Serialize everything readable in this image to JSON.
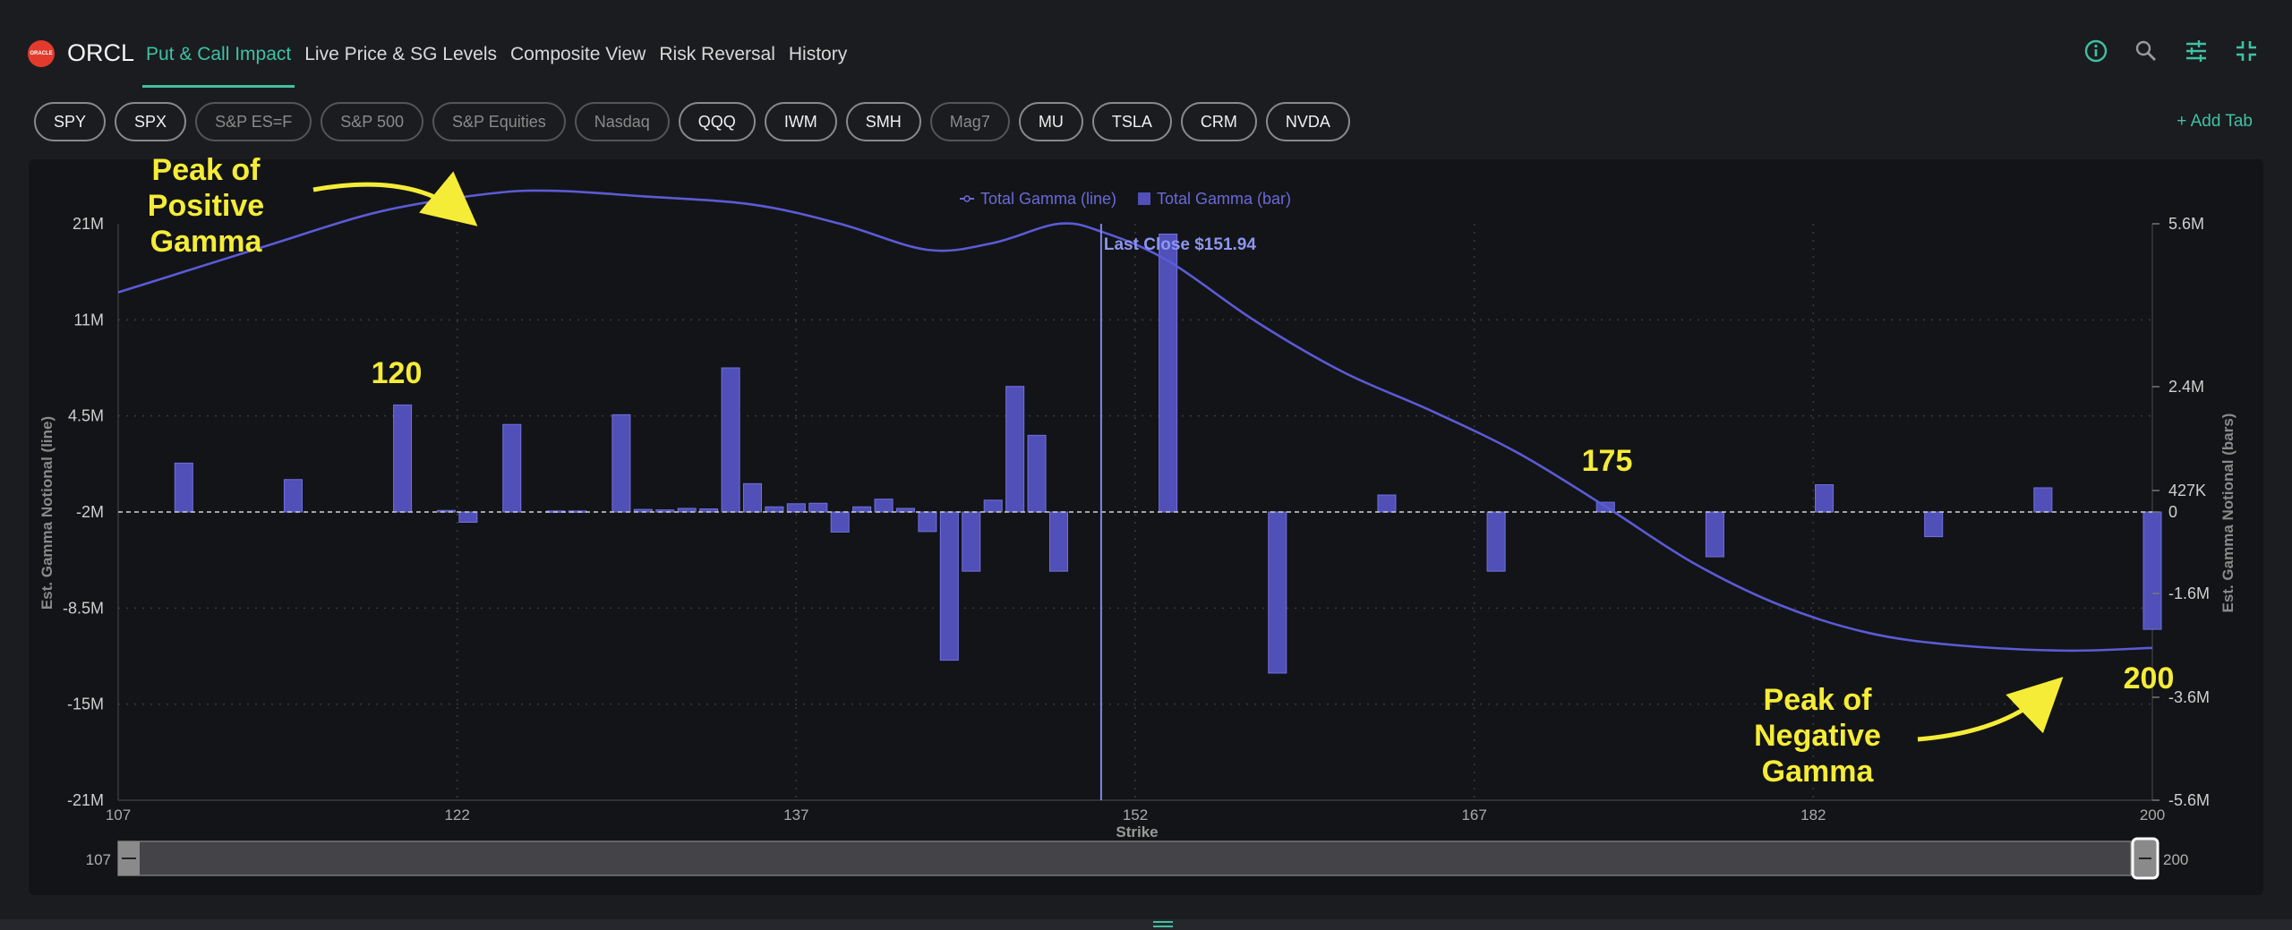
{
  "header": {
    "ticker": "ORCL",
    "logo_text": "ORACLE",
    "tabs": [
      {
        "label": "Put & Call Impact",
        "active": true
      },
      {
        "label": "Live Price & SG Levels",
        "active": false
      },
      {
        "label": "Composite View",
        "active": false
      },
      {
        "label": "Risk Reversal",
        "active": false
      },
      {
        "label": "History",
        "active": false
      }
    ],
    "icons": [
      "info-icon",
      "search-icon",
      "settings-sliders-icon",
      "collapse-icon"
    ]
  },
  "symbol_tabs": [
    {
      "label": "SPY",
      "enabled": true
    },
    {
      "label": "SPX",
      "enabled": true
    },
    {
      "label": "S&P ES=F",
      "enabled": false
    },
    {
      "label": "S&P 500",
      "enabled": false
    },
    {
      "label": "S&P Equities",
      "enabled": false
    },
    {
      "label": "Nasdaq",
      "enabled": false
    },
    {
      "label": "QQQ",
      "enabled": true
    },
    {
      "label": "IWM",
      "enabled": true
    },
    {
      "label": "SMH",
      "enabled": true
    },
    {
      "label": "Mag7",
      "enabled": false
    },
    {
      "label": "MU",
      "enabled": true
    },
    {
      "label": "TSLA",
      "enabled": true
    },
    {
      "label": "CRM",
      "enabled": true
    },
    {
      "label": "NVDA",
      "enabled": true
    }
  ],
  "add_tab_label": "+ Add Tab",
  "annotations": {
    "peak_positive": "Peak of\nPositive\nGamma",
    "peak_negative": "Peak of\nNegative\nGamma",
    "label_120": "120",
    "label_175": "175",
    "label_200": "200"
  },
  "colors": {
    "accent": "#3fc1a3",
    "series": "#5b5bd6",
    "bar_fill": "#5050b8",
    "annotation": "#f5ec37",
    "background": "#131417"
  },
  "chart_data": {
    "type": "bar+line",
    "legend": [
      "Total Gamma (line)",
      "Total Gamma (bar)"
    ],
    "legend_position": "top-center",
    "xlabel": "Strike",
    "ylabel_left": "Est. Gamma Notional (line)",
    "ylabel_right": "Est. Gamma Notional (bars)",
    "x_range": [
      107,
      200
    ],
    "x_ticks": [
      "107",
      "122",
      "137",
      "152",
      "167",
      "182",
      "200"
    ],
    "left_ticks": [
      "21M",
      "11M",
      "4.5M",
      "-2M",
      "-8.5M",
      "-15M",
      "-21M"
    ],
    "right_ticks": [
      "5.6M",
      "2.4M",
      "427K",
      "0",
      "-1.6M",
      "-3.6M",
      "-5.6M"
    ],
    "left_ylim": [
      -21000000,
      21000000
    ],
    "right_ylim": [
      -5600000,
      5600000
    ],
    "grid": "dotted",
    "last_close_label": "Last Close $151.94",
    "last_close": 151.94,
    "zoom_range_labels": [
      "107",
      "200"
    ],
    "bars": [
      {
        "strike": 110,
        "value": 950000
      },
      {
        "strike": 115,
        "value": 630000
      },
      {
        "strike": 120,
        "value": 2080000
      },
      {
        "strike": 122,
        "value": 30000
      },
      {
        "strike": 123,
        "value": -200000
      },
      {
        "strike": 125,
        "value": 1700000
      },
      {
        "strike": 127,
        "value": 20000
      },
      {
        "strike": 128,
        "value": 20000
      },
      {
        "strike": 130,
        "value": 1890000
      },
      {
        "strike": 131,
        "value": 50000
      },
      {
        "strike": 132,
        "value": 40000
      },
      {
        "strike": 133,
        "value": 70000
      },
      {
        "strike": 134,
        "value": 60000
      },
      {
        "strike": 135,
        "value": 2800000
      },
      {
        "strike": 136,
        "value": 550000
      },
      {
        "strike": 137,
        "value": 100000
      },
      {
        "strike": 138,
        "value": 160000
      },
      {
        "strike": 139,
        "value": 170000
      },
      {
        "strike": 140,
        "value": -390000
      },
      {
        "strike": 141,
        "value": 100000
      },
      {
        "strike": 142,
        "value": 250000
      },
      {
        "strike": 143,
        "value": 70000
      },
      {
        "strike": 144,
        "value": -380000
      },
      {
        "strike": 145,
        "value": -2880000
      },
      {
        "strike": 146,
        "value": -1150000
      },
      {
        "strike": 147,
        "value": 230000
      },
      {
        "strike": 148,
        "value": 2440000
      },
      {
        "strike": 149,
        "value": 1490000
      },
      {
        "strike": 150,
        "value": -1150000
      },
      {
        "strike": 155,
        "value": 5400000
      },
      {
        "strike": 160,
        "value": -3130000
      },
      {
        "strike": 165,
        "value": 330000
      },
      {
        "strike": 170,
        "value": -1150000
      },
      {
        "strike": 175,
        "value": 190000
      },
      {
        "strike": 180,
        "value": -870000
      },
      {
        "strike": 185,
        "value": 530000
      },
      {
        "strike": 190,
        "value": -480000
      },
      {
        "strike": 195,
        "value": 470000
      },
      {
        "strike": 200,
        "value": -2280000
      }
    ],
    "line": [
      {
        "strike": 107,
        "value": 16000000
      },
      {
        "strike": 110,
        "value": 17500000
      },
      {
        "strike": 114,
        "value": 19500000
      },
      {
        "strike": 119,
        "value": 21900000
      },
      {
        "strike": 124,
        "value": 23200000
      },
      {
        "strike": 127,
        "value": 23400000
      },
      {
        "strike": 131,
        "value": 23000000
      },
      {
        "strike": 136,
        "value": 22400000
      },
      {
        "strike": 140,
        "value": 21000000
      },
      {
        "strike": 144,
        "value": 19100000
      },
      {
        "strike": 147,
        "value": 19600000
      },
      {
        "strike": 150,
        "value": 21000000
      },
      {
        "strike": 152,
        "value": 20400000
      },
      {
        "strike": 155,
        "value": 18300000
      },
      {
        "strike": 159,
        "value": 13900000
      },
      {
        "strike": 163,
        "value": 10200000
      },
      {
        "strike": 167,
        "value": 7400000
      },
      {
        "strike": 171,
        "value": 4300000
      },
      {
        "strike": 175,
        "value": 400000
      },
      {
        "strike": 179,
        "value": -3700000
      },
      {
        "strike": 183,
        "value": -6800000
      },
      {
        "strike": 187,
        "value": -8800000
      },
      {
        "strike": 191,
        "value": -9700000
      },
      {
        "strike": 196,
        "value": -10100000
      },
      {
        "strike": 200,
        "value": -9900000
      }
    ]
  }
}
